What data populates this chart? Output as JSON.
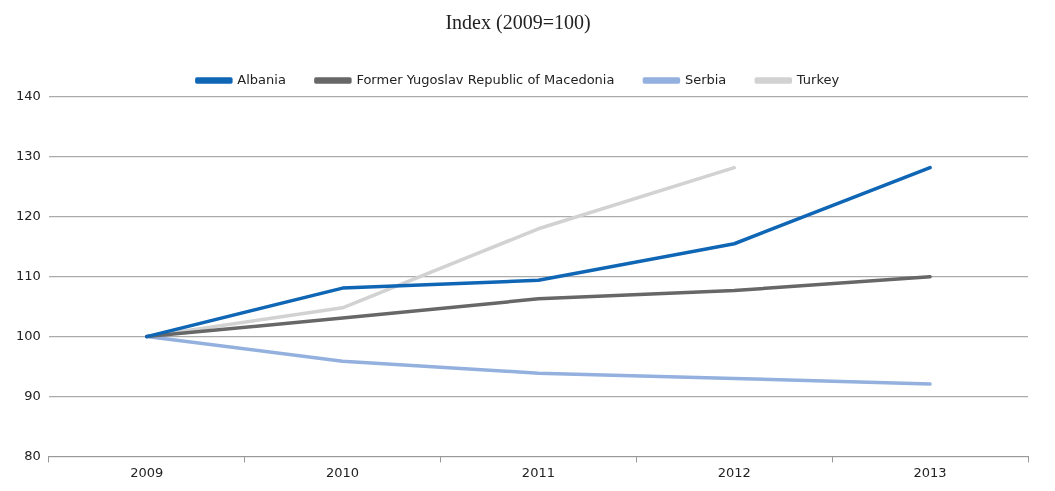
{
  "chart_data": {
    "type": "line",
    "title": "Index (2009=100)",
    "categories": [
      "2009",
      "2010",
      "2011",
      "2012",
      "2013"
    ],
    "series": [
      {
        "name": "Albania",
        "color": "#0f66b5",
        "values": [
          100,
          108.1,
          109.4,
          115.5,
          128.2
        ]
      },
      {
        "name": "Former Yugoslav Republic of Macedonia",
        "color": "#676767",
        "values": [
          100,
          103.1,
          106.3,
          107.7,
          110.0
        ]
      },
      {
        "name": "Serbia",
        "color": "#93b0de",
        "values": [
          100,
          95.9,
          93.9,
          93.0,
          92.1
        ]
      },
      {
        "name": "Turkey",
        "color": "#d2d2d2",
        "values": [
          100,
          104.8,
          118.0,
          128.2,
          null
        ]
      }
    ],
    "ylim": [
      80,
      140
    ],
    "yticks": [
      80,
      90,
      100,
      110,
      120,
      130,
      140
    ],
    "grid": "y",
    "legend": "top",
    "marker": "none",
    "line_style": "solid"
  }
}
